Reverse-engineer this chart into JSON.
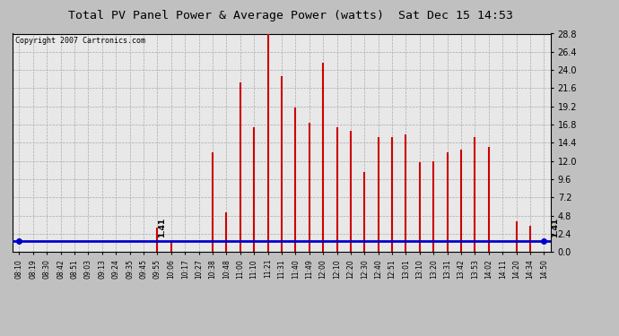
{
  "title": "Total PV Panel Power & Average Power (watts)  Sat Dec 15 14:53",
  "copyright": "Copyright 2007 Cartronics.com",
  "avg_value": 1.41,
  "avg_label": "1.41",
  "ylim": [
    0.0,
    28.8
  ],
  "yticks": [
    0.0,
    2.4,
    4.8,
    7.2,
    9.6,
    12.0,
    14.4,
    16.8,
    19.2,
    21.6,
    24.0,
    26.4,
    28.8
  ],
  "bar_color": "#cc0000",
  "avg_line_color": "#0000cc",
  "plot_bg_color": "#e8e8e8",
  "outer_bg_color": "#c0c0c0",
  "x_labels": [
    "08:10",
    "08:19",
    "08:30",
    "08:42",
    "08:51",
    "09:03",
    "09:13",
    "09:24",
    "09:35",
    "09:45",
    "09:55",
    "10:06",
    "10:17",
    "10:27",
    "10:38",
    "10:48",
    "11:00",
    "11:10",
    "11:21",
    "11:31",
    "11:40",
    "11:49",
    "12:00",
    "12:10",
    "12:20",
    "12:30",
    "12:40",
    "12:51",
    "13:01",
    "13:10",
    "13:20",
    "13:31",
    "13:42",
    "13:53",
    "14:02",
    "14:11",
    "14:20",
    "14:34",
    "14:50"
  ],
  "bar_values": [
    0.0,
    0.0,
    0.0,
    0.0,
    0.0,
    0.0,
    0.0,
    0.0,
    0.0,
    0.0,
    3.2,
    1.41,
    0.0,
    0.0,
    13.2,
    5.2,
    22.4,
    16.4,
    28.8,
    23.2,
    19.0,
    17.0,
    25.0,
    16.5,
    16.0,
    10.5,
    15.2,
    15.2,
    15.5,
    11.8,
    12.0,
    13.2,
    13.5,
    15.2,
    13.8,
    0.0,
    4.0,
    3.5,
    0.0
  ]
}
